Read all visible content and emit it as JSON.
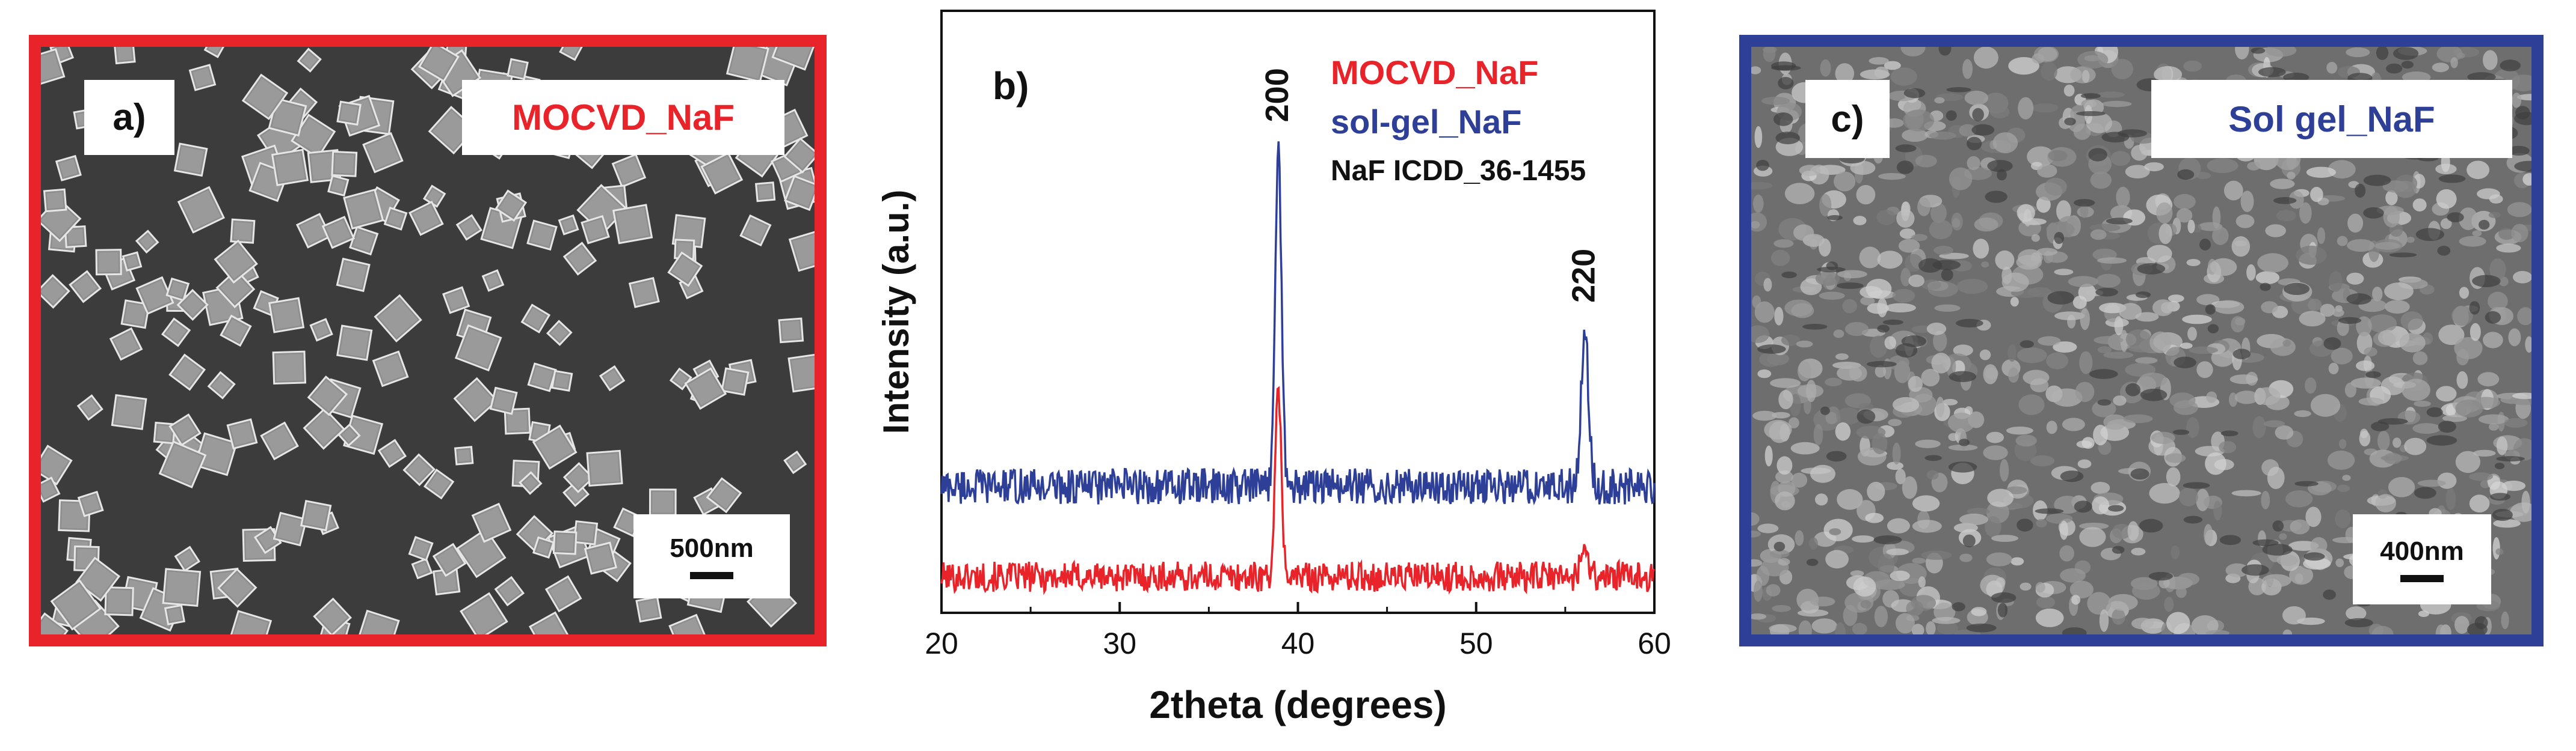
{
  "panel_a": {
    "label": "a)",
    "title": "MOCVD_NaF",
    "scale_label": "500nm",
    "border_color": "#e8232a"
  },
  "panel_c": {
    "label": "c)",
    "title": "Sol gel_NaF",
    "scale_label": "400nm",
    "border_color": "#2e3f97"
  },
  "chart_data": {
    "type": "line",
    "panel_label": "b)",
    "title": "",
    "xlabel": "2theta (degrees)",
    "ylabel": "Intensity (a.u.)",
    "xlim": [
      20,
      60
    ],
    "ylim": [
      0,
      100
    ],
    "xticks": [
      20,
      30,
      40,
      50,
      60
    ],
    "yticks_visible": false,
    "legend_position": "top-right",
    "legend": [
      {
        "name": "MOCVD_NaF",
        "color": "#e8232a"
      },
      {
        "name": "sol-gel_NaF",
        "color": "#2e3f97"
      },
      {
        "name": "NaF ICDD_36-1455",
        "color": "#111111"
      }
    ],
    "series": [
      {
        "name": "MOCVD_NaF",
        "color": "#e8232a",
        "baseline": 6,
        "noise": 2.5,
        "peaks": [
          {
            "x": 38.9,
            "height": 30,
            "width": 0.25
          },
          {
            "x": 56.1,
            "height": 5,
            "width": 0.3
          }
        ]
      },
      {
        "name": "sol-gel_NaF",
        "color": "#2e3f97",
        "baseline": 21,
        "noise": 3,
        "peaks": [
          {
            "x": 38.9,
            "height": 57,
            "width": 0.25
          },
          {
            "x": 56.1,
            "height": 25,
            "width": 0.3
          }
        ]
      }
    ],
    "annotations": [
      {
        "text": "200",
        "x": 38.9,
        "y": 86
      },
      {
        "text": "220",
        "x": 56.1,
        "y": 56
      }
    ]
  }
}
